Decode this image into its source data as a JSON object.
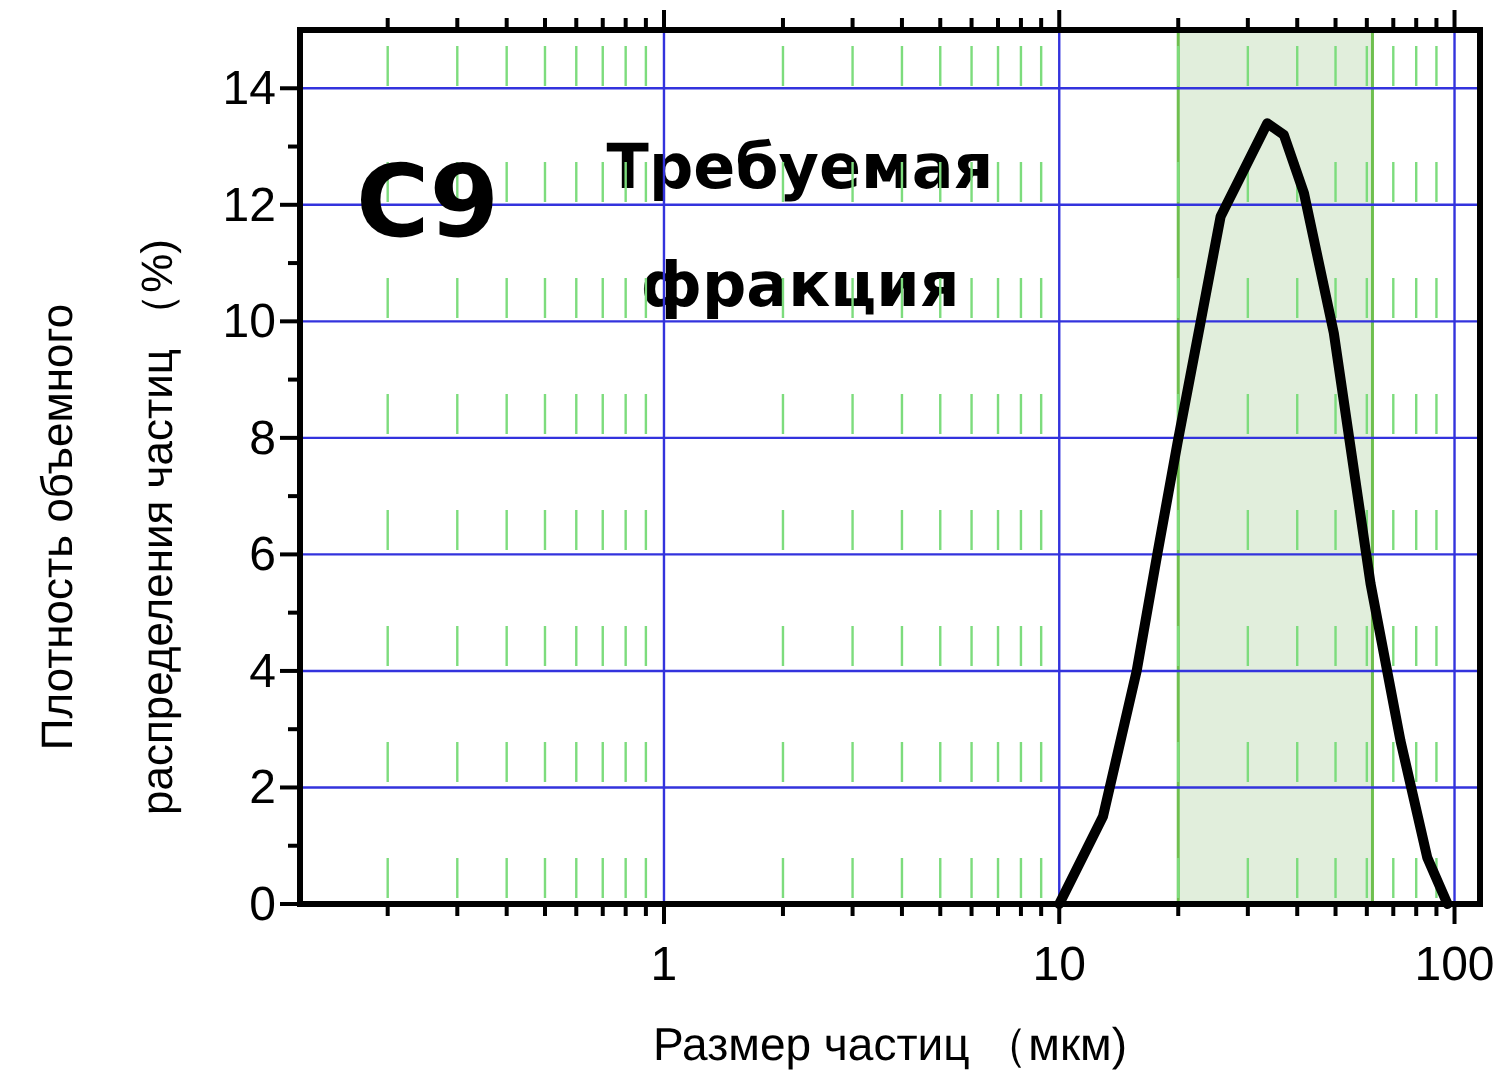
{
  "chart_data": {
    "type": "line",
    "xlabel": "Размер частиц （мкм)",
    "ylabel": "Плотность объемного\nраспределения частиц （%)",
    "log": "x",
    "grid": true,
    "marker": "none",
    "line_style": "solid",
    "xlim": [
      0.12,
      116
    ],
    "xticks": [
      {
        "value": 0.2,
        "label": null
      },
      {
        "value": 0.3,
        "label": null
      },
      {
        "value": 0.4,
        "label": null
      },
      {
        "value": 0.5,
        "label": null
      },
      {
        "value": 0.6,
        "label": null
      },
      {
        "value": 0.7,
        "label": null
      },
      {
        "value": 0.8,
        "label": null
      },
      {
        "value": 0.9,
        "label": null
      },
      1,
      {
        "value": 2,
        "label": null
      },
      {
        "value": 3,
        "label": null
      },
      {
        "value": 4,
        "label": null
      },
      {
        "value": 5,
        "label": null
      },
      {
        "value": 6,
        "label": null
      },
      {
        "value": 7,
        "label": null
      },
      {
        "value": 8,
        "label": null
      },
      {
        "value": 9,
        "label": null
      },
      10,
      {
        "value": 20,
        "label": null
      },
      {
        "value": 30,
        "label": null
      },
      {
        "value": 40,
        "label": null
      },
      {
        "value": 50,
        "label": null
      },
      {
        "value": 60,
        "label": null
      },
      {
        "value": 70,
        "label": null
      },
      {
        "value": 80,
        "label": null
      },
      {
        "value": 90,
        "label": null
      },
      100
    ],
    "ylim": [
      0,
      15
    ],
    "yticks": [
      0,
      {
        "value": 1,
        "label": null
      },
      2,
      {
        "value": 3,
        "label": null
      },
      4,
      {
        "value": 5,
        "label": null
      },
      6,
      {
        "value": 7,
        "label": null
      },
      8,
      {
        "value": 9,
        "label": null
      },
      10,
      {
        "value": 11,
        "label": null
      },
      12,
      {
        "value": 13,
        "label": null
      },
      14
    ],
    "x": [
      10,
      12.9,
      15.7,
      17.7,
      19.9,
      22.8,
      25.6,
      33.6,
      37,
      41.6,
      49.5,
      61.3,
      73,
      85.3,
      96
    ],
    "series": [
      {
        "color": "#000000",
        "values": [
          0,
          1.5,
          4,
          6,
          7.9,
          10,
          11.8,
          13.4,
          13.2,
          12.2,
          9.8,
          5.5,
          2.8,
          0.8,
          0
        ]
      }
    ],
    "bands": [
      {
        "axis": "x",
        "from": 20,
        "to": 62,
        "label": "Требуемая фракция",
        "color": "#d9ead3"
      }
    ],
    "annotations": [
      "C9"
    ]
  }
}
